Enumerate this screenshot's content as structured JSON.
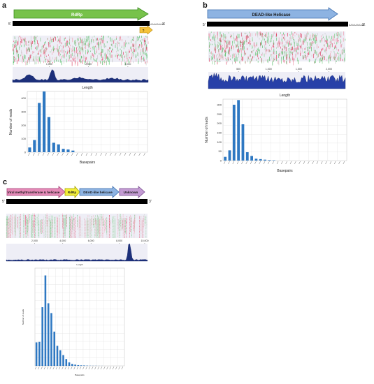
{
  "panels": {
    "a": {
      "label": "a",
      "genes": [
        {
          "name": "RdRp",
          "color": "#77c24a",
          "stroke": "#3a8c1f"
        },
        {
          "name": "?",
          "color": "#f6c33a",
          "stroke": "#b58400"
        }
      ],
      "five": "5'",
      "three": "3'",
      "polyA": "AAAAAAAAA",
      "ruler_ticks": [
        "1,000",
        "2,000",
        "3,000"
      ],
      "chart_title": "Length",
      "xlabel": "Basepairs",
      "ylabel": "Number of reads"
    },
    "b": {
      "label": "b",
      "genes": [
        {
          "name": "DEAD-like Helicase",
          "color": "#8db3e2",
          "stroke": "#3e6fae"
        }
      ],
      "five": "5'",
      "three": "3'",
      "polyA": "AAAAAAAAAA",
      "ruler_ticks": [
        "500",
        "1,000",
        "1,500",
        "2,000"
      ],
      "chart_title": "Length",
      "xlabel": "Basepairs",
      "ylabel": "Number of reads"
    },
    "c": {
      "label": "c",
      "genes": [
        {
          "name": "Viral methyltransferase & helicase",
          "color": "#e58ab8",
          "stroke": "#a8457a"
        },
        {
          "name": "RdRp",
          "color": "#f2ee3a",
          "stroke": "#a8a200"
        },
        {
          "name": "DEAD-like helicase",
          "color": "#8db3e2",
          "stroke": "#3e6fae"
        },
        {
          "name": "Unknown",
          "color": "#c39bd3",
          "stroke": "#7a4e91"
        }
      ],
      "five": "5'",
      "three": "3'",
      "ruler_ticks": [
        "2,000",
        "4,000",
        "6,000",
        "8,000",
        "10,000"
      ],
      "chart_title": "Length",
      "xlabel": "Basepairs",
      "ylabel": "Number of reads"
    }
  },
  "chart_data": [
    {
      "type": "bar",
      "panel": "a",
      "title": "Length",
      "xlabel": "Basepairs",
      "ylabel": "Number of reads",
      "ylim": [
        0,
        450
      ],
      "yticks": [
        0,
        100,
        200,
        300,
        400
      ],
      "values": [
        35,
        90,
        365,
        450,
        260,
        70,
        58,
        25,
        20,
        12,
        0,
        0,
        0,
        0,
        0,
        0,
        0,
        0,
        0,
        0,
        0,
        0,
        0,
        0,
        0
      ],
      "grid": true,
      "color": "#2e78c2"
    },
    {
      "type": "bar",
      "panel": "b",
      "title": "Length",
      "xlabel": "Basepairs",
      "ylabel": "Number of reads",
      "ylim": [
        0,
        330
      ],
      "yticks": [
        0,
        50,
        100,
        150,
        200,
        250,
        300
      ],
      "values": [
        20,
        55,
        300,
        325,
        195,
        45,
        25,
        10,
        8,
        5,
        3,
        2,
        0,
        0,
        0,
        0,
        0,
        0,
        0,
        0,
        0,
        0,
        0,
        0,
        0,
        0,
        0,
        0
      ],
      "grid": true,
      "color": "#2e78c2"
    },
    {
      "type": "bar",
      "panel": "c",
      "title": "Length",
      "xlabel": "Basepairs",
      "ylabel": "Number of reads",
      "ylim": [
        0,
        2000
      ],
      "values": [
        480,
        490,
        1200,
        1850,
        1280,
        1080,
        700,
        410,
        320,
        220,
        140,
        70,
        40,
        25,
        15,
        10,
        8,
        5,
        3,
        2,
        2,
        1,
        1,
        0,
        0,
        0,
        0,
        0,
        0,
        0
      ],
      "grid": true,
      "color": "#2e78c2"
    }
  ]
}
